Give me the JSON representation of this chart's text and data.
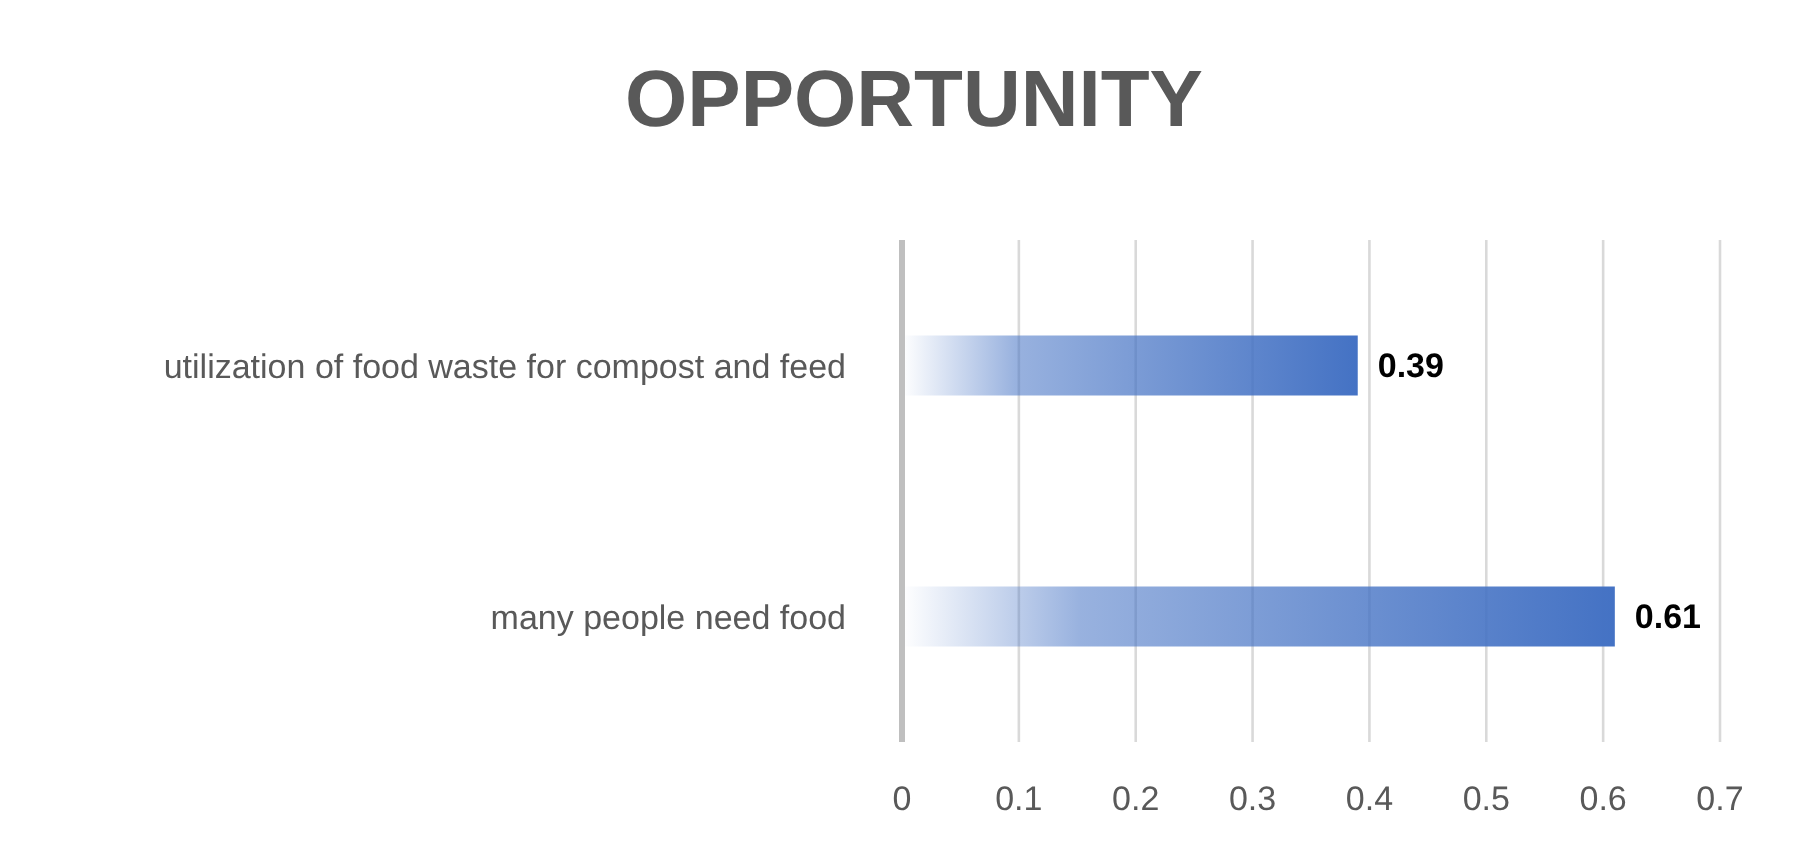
{
  "chart_data": {
    "type": "bar",
    "orientation": "horizontal",
    "title": "OPPORTUNITY",
    "categories": [
      "utilization of food waste for compost and feed",
      "many people need food"
    ],
    "values": [
      0.39,
      0.61
    ],
    "color": "#4472c4",
    "xlim": [
      0,
      0.7
    ],
    "xticks": [
      0,
      0.1,
      0.2,
      0.3,
      0.4,
      0.5,
      0.6,
      0.7
    ],
    "grid": "x",
    "data_labels": true,
    "legend": false
  }
}
